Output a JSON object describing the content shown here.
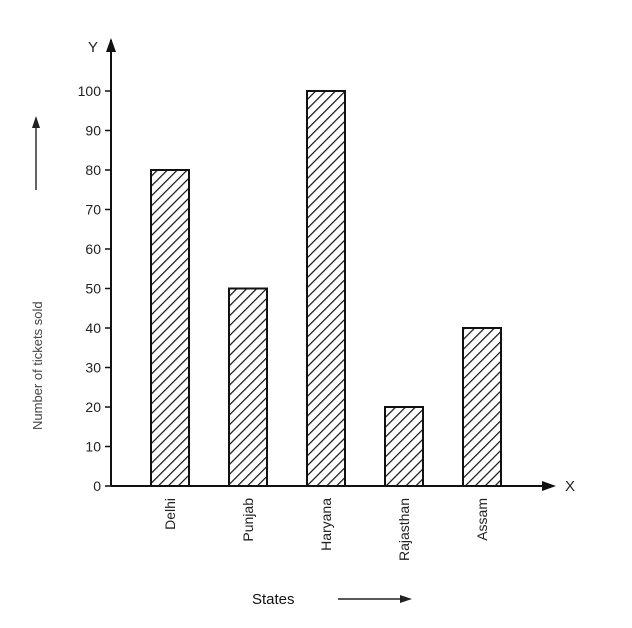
{
  "chart_data": {
    "type": "bar",
    "categories": [
      "Delhi",
      "Punjab",
      "Haryana",
      "Rajasthan",
      "Assam"
    ],
    "values": [
      80,
      50,
      100,
      20,
      40
    ],
    "xlabel": "States",
    "ylabel": "Number of tickets sold",
    "x_axis_letter": "X",
    "y_axis_letter": "Y",
    "ylim": [
      0,
      100
    ],
    "yticks": [
      "0",
      "10",
      "20",
      "30",
      "40",
      "50",
      "60",
      "70",
      "80",
      "90",
      "100"
    ],
    "bar_fill": "hatched",
    "grid": false,
    "legend": "none"
  }
}
